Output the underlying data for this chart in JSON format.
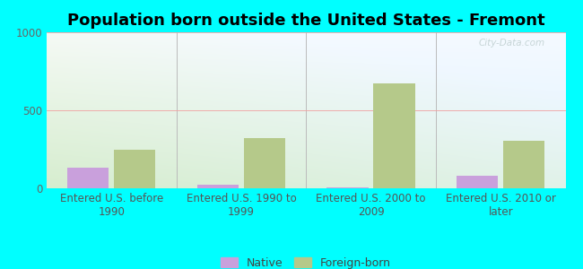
{
  "title": "Population born outside the United States - Fremont",
  "categories": [
    "Entered U.S. before\n1990",
    "Entered U.S. 1990 to\n1999",
    "Entered U.S. 2000 to\n2009",
    "Entered U.S. 2010 or\nlater"
  ],
  "native_values": [
    130,
    25,
    8,
    80
  ],
  "foreign_values": [
    245,
    320,
    670,
    305
  ],
  "native_color": "#c9a0dc",
  "foreign_color": "#b5c98a",
  "plot_bg_top": "#f8fcf0",
  "plot_bg_bottom": "#d6e8c0",
  "plot_bg_right": "#c8e8e8",
  "outer_background": "#00ffff",
  "title_fontsize": 13,
  "tick_fontsize": 8.5,
  "label_fontsize": 9,
  "ylim": [
    0,
    1000
  ],
  "yticks": [
    0,
    500,
    1000
  ],
  "bar_width": 0.32,
  "watermark": "City-Data.com",
  "legend_labels": [
    "Native",
    "Foreign-born"
  ],
  "grid_color": "#f0a0a0",
  "separator_color": "#bbbbbb"
}
